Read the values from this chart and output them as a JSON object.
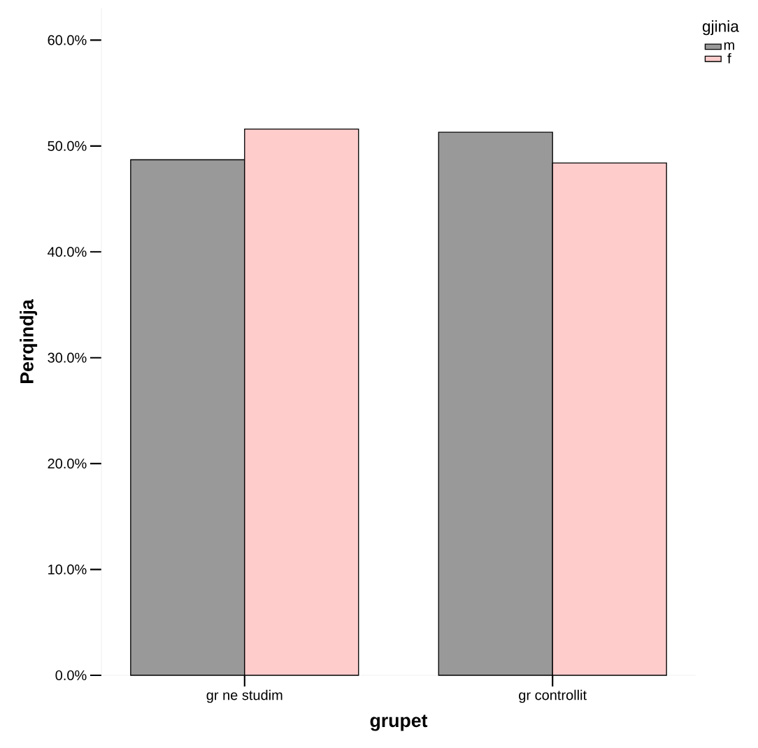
{
  "chart_data": {
    "type": "bar",
    "xlabel": "grupet",
    "ylabel": "Perqindja",
    "legend_title": "gjinia",
    "legend": "top right",
    "categories": [
      "gr ne studim",
      "gr controllit"
    ],
    "series": [
      {
        "name": "m",
        "color": "#999999",
        "values": [
          48.7,
          51.3
        ]
      },
      {
        "name": "f",
        "color": "#ffcccc",
        "values": [
          51.6,
          48.4
        ]
      }
    ],
    "ylim": [
      0,
      63
    ],
    "yticks": [
      {
        "value": 0,
        "label": "0.0%"
      },
      {
        "value": 10,
        "label": "10.0%"
      },
      {
        "value": 20,
        "label": "20.0%"
      },
      {
        "value": 30,
        "label": "30.0%"
      },
      {
        "value": 40,
        "label": "40.0%"
      },
      {
        "value": 50,
        "label": "50.0%"
      },
      {
        "value": 60,
        "label": "60.0%"
      }
    ]
  }
}
